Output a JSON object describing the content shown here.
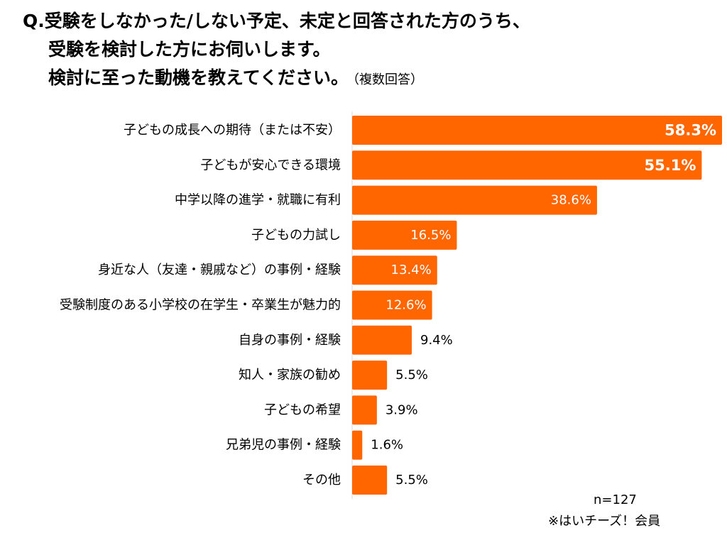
{
  "question": {
    "line1": "Q.受験をしなかった/しない予定、未定と回答された方のうち、",
    "line2": "受験を検討した方にお伺いします。",
    "line3": "検討に至った動機を教えてください。",
    "line3_sub": "（複数回答）"
  },
  "chart_data": {
    "type": "bar",
    "orientation": "horizontal",
    "categories": [
      "子どもの成長への期待（または不安）",
      "子どもが安心できる環境",
      "中学以降の進学・就職に有利",
      "子どもの力試し",
      "身近な人（友達・親戚など）の事例・経験",
      "受験制度のある小学校の在学生・卒業生が魅力的",
      "自身の事例・経験",
      "知人・家族の勧め",
      "子どもの希望",
      "兄弟児の事例・経験",
      "その他"
    ],
    "values": [
      58.3,
      55.1,
      38.6,
      16.5,
      13.4,
      12.6,
      9.4,
      5.5,
      3.9,
      1.6,
      5.5
    ],
    "labels": [
      "58.3%",
      "55.1%",
      "38.6%",
      "16.5%",
      "13.4%",
      "12.6%",
      "9.4%",
      "5.5%",
      "3.9%",
      "1.6%",
      "5.5%"
    ],
    "xlim": [
      0,
      58.3
    ],
    "bar_color": "#FF6600",
    "label_inside_color": "#ffffff",
    "label_outside_color": "#000000"
  },
  "footnote": {
    "sample": "n=127",
    "source": "※はいチーズ！会員"
  }
}
